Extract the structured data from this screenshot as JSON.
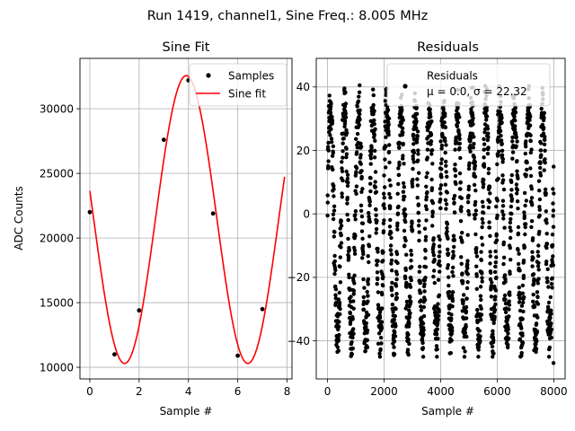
{
  "suptitle": "Run 1419, channel1, Sine Freq.: 8.005 MHz",
  "colors": {
    "fit": "#ff0000",
    "points": "#000000",
    "grid": "#b0b0b0",
    "legend_border": "#cccccc"
  },
  "chart_data": [
    {
      "type": "scatter",
      "title": "Sine Fit",
      "xlabel": "Sample #",
      "ylabel": "ADC Counts",
      "xlim": [
        -0.4,
        8.2
      ],
      "ylim": [
        9100,
        33900
      ],
      "xticks": [
        0,
        2,
        4,
        6,
        8
      ],
      "yticks": [
        10000,
        15000,
        20000,
        25000,
        30000
      ],
      "grid": true,
      "legend_position": "top-right",
      "series": [
        {
          "name": "Samples",
          "kind": "points",
          "x": [
            0,
            1,
            2,
            3,
            4,
            5,
            6,
            7
          ],
          "y": [
            22000,
            11000,
            14400,
            27600,
            32200,
            21900,
            10900,
            14500
          ]
        },
        {
          "name": "Sine fit",
          "kind": "line",
          "model": {
            "offset": 21430,
            "amplitude": 11130,
            "period": 5.0,
            "phase_deg": 168.5
          },
          "x_range": [
            0,
            7.9
          ]
        }
      ]
    },
    {
      "type": "scatter",
      "title": "Residuals",
      "xlabel": "Sample #",
      "ylabel": "",
      "xlim": [
        -400,
        8400
      ],
      "ylim": [
        -52,
        49
      ],
      "xticks": [
        0,
        2000,
        4000,
        6000,
        8000
      ],
      "yticks": [
        -40,
        -20,
        0,
        20,
        40
      ],
      "grid": true,
      "legend_position": "top-right",
      "legend_lines": [
        "Residuals",
        "μ = 0.0, σ = 22.32"
      ],
      "series": [
        {
          "name": "Residuals",
          "kind": "points",
          "count": 8000,
          "x_range": [
            0,
            8000
          ],
          "envelope": {
            "min": -47,
            "max": 42,
            "cycles": 16
          }
        }
      ]
    }
  ]
}
